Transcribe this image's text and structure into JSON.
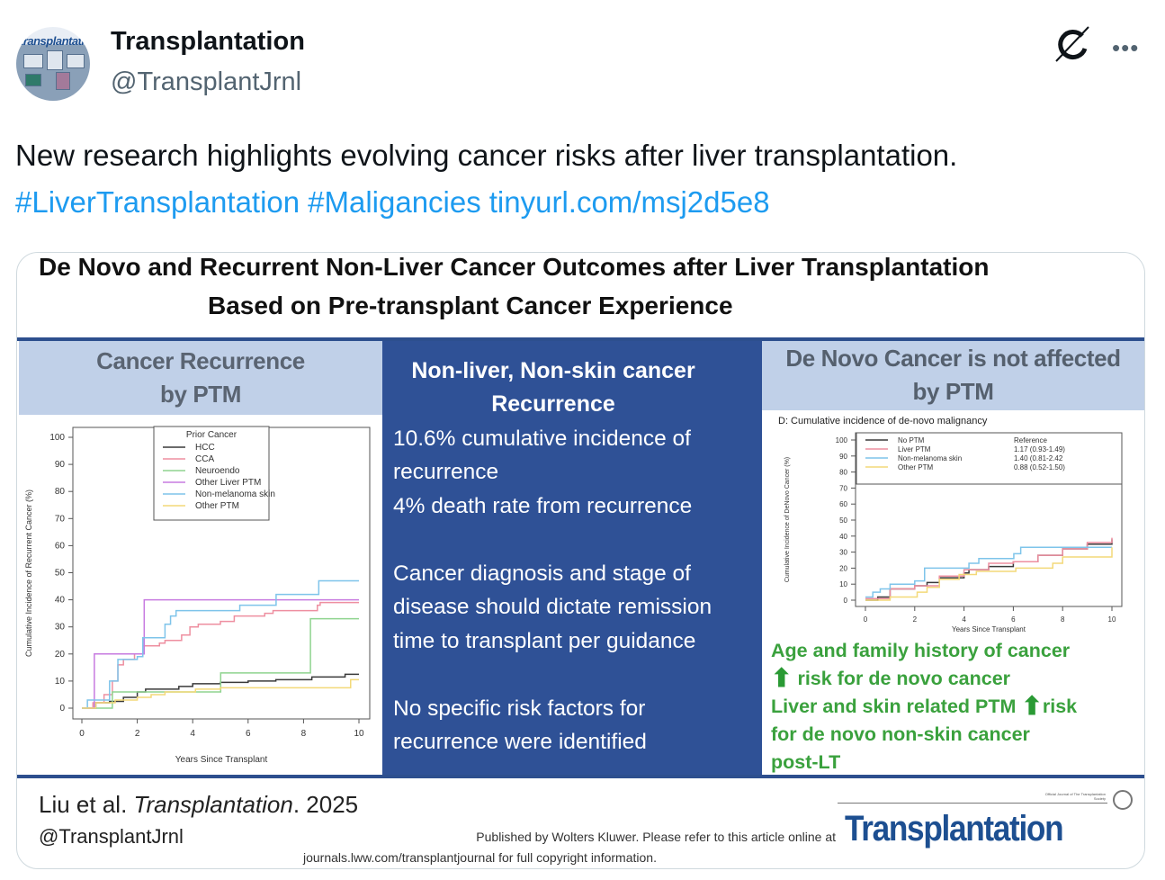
{
  "author": {
    "name": "Transplantation",
    "handle": "@TransplantJrnl",
    "avatar_text": "transplantation"
  },
  "header_icons": [
    "grok-icon",
    "more-icon"
  ],
  "more_label": "•••",
  "tweet": {
    "text": "New research highlights evolving cancer risks after liver transplantation.",
    "hashtags": [
      "#LiverTransplantation",
      "#Maligancies"
    ],
    "link": "tinyurl.com/msj2d5e8"
  },
  "infographic": {
    "title_line1": "De Novo and Recurrent Non-Liver Cancer Outcomes after Liver Transplantation",
    "title_line2": "Based on Pre-transplant Cancer Experience",
    "left_header": [
      "Cancer Recurrence",
      "by PTM"
    ],
    "middle": {
      "heading": [
        "Non-liver, Non-skin cancer",
        "Recurrence"
      ],
      "lines": [
        "10.6% cumulative incidence of",
        "recurrence",
        "4% death rate from recurrence",
        "Cancer diagnosis and stage of",
        "disease should dictate remission",
        "time to transplant per guidance",
        "No specific risk factors for",
        "recurrence were identified"
      ]
    },
    "right_header": [
      "De Novo Cancer is not affected",
      "by PTM"
    ],
    "right_findings": {
      "l1": "Age and family history of cancer",
      "l2": "risk for de novo cancer",
      "l3": "Liver and skin related PTM",
      "l3b": "risk",
      "l4": "for de novo non-skin cancer",
      "l5": "post-LT",
      "arrow_icon": "up-arrow-icon",
      "color": "#3aa13d"
    },
    "footer": {
      "citation_authors": "Liu et al.",
      "citation_journal": "Transplantation",
      "citation_year": ". 2025",
      "handle": "@TransplantJrnl",
      "publisher_line1": "Published by Wolters Kluwer. Please refer to this article online at",
      "publisher_line2": "journals.lww.com/transplantjournal for full copyright information.",
      "logo": "Transplantation",
      "logo_tag": "Official Journal of The Transplantation Society"
    },
    "colors": {
      "rule": "#2d4f8e",
      "header_bg": "#c0d0e8",
      "middle_bg": "#2f5196",
      "logo": "#1d4f91"
    }
  },
  "chart_data": [
    {
      "type": "line",
      "title": "",
      "xlabel": "Years Since Transplant",
      "ylabel": "Cumulative Incidence of Recurrent Cancer (%)",
      "xlim": [
        0,
        10
      ],
      "ylim": [
        0,
        100
      ],
      "xticks": [
        0,
        2,
        4,
        6,
        8,
        10
      ],
      "yticks": [
        0,
        10,
        20,
        30,
        40,
        50,
        60,
        70,
        80,
        90,
        100
      ],
      "legend_title": "Prior Cancer",
      "legend_position": "top-center",
      "grid": false,
      "series": [
        {
          "name": "HCC",
          "color": "#3a3a3a",
          "points": [
            [
              0,
              0
            ],
            [
              0.5,
              2
            ],
            [
              1,
              2.5
            ],
            [
              1.5,
              4
            ],
            [
              2,
              6
            ],
            [
              2.3,
              7
            ],
            [
              3,
              7
            ],
            [
              3.5,
              8
            ],
            [
              4,
              9
            ],
            [
              5,
              9.5
            ],
            [
              6,
              10
            ],
            [
              7,
              10.5
            ],
            [
              8,
              10.5
            ],
            [
              8.3,
              11.5
            ],
            [
              9.5,
              12.5
            ],
            [
              10,
              12.5
            ]
          ]
        },
        {
          "name": "CCA",
          "color": "#ee8fa0",
          "points": [
            [
              0,
              0
            ],
            [
              0.4,
              2
            ],
            [
              0.8,
              5
            ],
            [
              1.1,
              10
            ],
            [
              1.3,
              16
            ],
            [
              1.5,
              18
            ],
            [
              1.9,
              20
            ],
            [
              2.2,
              23
            ],
            [
              2.8,
              24
            ],
            [
              3,
              25
            ],
            [
              3.6,
              27
            ],
            [
              3.9,
              30
            ],
            [
              4.2,
              31
            ],
            [
              5,
              32
            ],
            [
              5.5,
              34
            ],
            [
              6.6,
              35
            ],
            [
              6.9,
              36
            ],
            [
              8.5,
              38
            ],
            [
              8.6,
              39
            ],
            [
              10,
              39
            ]
          ]
        },
        {
          "name": "Neuroendo",
          "color": "#8fd48f",
          "points": [
            [
              0,
              0
            ],
            [
              1.1,
              6
            ],
            [
              5,
              6
            ],
            [
              5.01,
              13
            ],
            [
              8.2,
              13
            ],
            [
              8.25,
              33
            ],
            [
              10,
              33
            ]
          ]
        },
        {
          "name": "Other Liver PTM",
          "color": "#c77be0",
          "points": [
            [
              0,
              0
            ],
            [
              0.45,
              20
            ],
            [
              2.2,
              20
            ],
            [
              2.25,
              40
            ],
            [
              10,
              40
            ]
          ]
        },
        {
          "name": "Non-melanoma skin",
          "color": "#7ec4ea",
          "points": [
            [
              0,
              0
            ],
            [
              0.2,
              3
            ],
            [
              0.9,
              3
            ],
            [
              1,
              10
            ],
            [
              1.3,
              18
            ],
            [
              2,
              19
            ],
            [
              2.2,
              26
            ],
            [
              2.8,
              26
            ],
            [
              3,
              31
            ],
            [
              3.2,
              34
            ],
            [
              3.4,
              36
            ],
            [
              5.6,
              36
            ],
            [
              5.7,
              38
            ],
            [
              7,
              38
            ],
            [
              7.01,
              42
            ],
            [
              8.5,
              42
            ],
            [
              8.55,
              47
            ],
            [
              10,
              47
            ]
          ]
        },
        {
          "name": "Other PTM",
          "color": "#f3d979",
          "points": [
            [
              0,
              0
            ],
            [
              0.5,
              2
            ],
            [
              1.2,
              3
            ],
            [
              2,
              4
            ],
            [
              2.5,
              5
            ],
            [
              3,
              6
            ],
            [
              4.1,
              7
            ],
            [
              5,
              7.5
            ],
            [
              9.6,
              7.5
            ],
            [
              9.7,
              10.5
            ],
            [
              10,
              10.5
            ]
          ]
        }
      ]
    },
    {
      "type": "line",
      "title": "D: Cumulative incidence of de-novo malignancy",
      "xlabel": "Years Since Transplant",
      "ylabel": "Cumulative Incidence of DeNovo Cancer (%)",
      "xlim": [
        0,
        10
      ],
      "ylim": [
        0,
        100
      ],
      "xticks": [
        0,
        2,
        4,
        6,
        8,
        10
      ],
      "yticks": [
        0,
        10,
        20,
        30,
        40,
        50,
        60,
        70,
        80,
        90,
        100
      ],
      "legend_position": "top",
      "grid": false,
      "series": [
        {
          "name": "No PTM",
          "hr": "Reference",
          "color": "#3a3a3a",
          "points": [
            [
              0,
              0
            ],
            [
              0.5,
              2
            ],
            [
              1,
              7
            ],
            [
              2,
              9
            ],
            [
              2.5,
              11
            ],
            [
              3,
              14
            ],
            [
              4,
              17
            ],
            [
              4.2,
              19
            ],
            [
              5,
              21
            ],
            [
              6,
              24
            ],
            [
              7,
              28
            ],
            [
              8,
              32
            ],
            [
              9,
              35
            ],
            [
              10,
              38
            ]
          ]
        },
        {
          "name": "Liver PTM",
          "hr": "1.17 (0.93-1.49)",
          "color": "#ee8fa0",
          "points": [
            [
              0,
              1
            ],
            [
              1,
              7
            ],
            [
              2,
              9
            ],
            [
              3,
              15
            ],
            [
              4,
              19
            ],
            [
              5,
              23
            ],
            [
              6,
              24
            ],
            [
              7,
              28
            ],
            [
              8,
              32
            ],
            [
              9,
              36
            ],
            [
              10,
              39
            ]
          ]
        },
        {
          "name": "Non-melanoma skin",
          "hr": "1.40 (0.81-2.42",
          "color": "#7ec4ea",
          "points": [
            [
              0,
              2
            ],
            [
              0.3,
              5
            ],
            [
              0.6,
              7
            ],
            [
              1,
              10
            ],
            [
              2,
              12
            ],
            [
              2.4,
              20
            ],
            [
              4,
              20
            ],
            [
              4.2,
              23
            ],
            [
              4.6,
              26
            ],
            [
              6,
              26
            ],
            [
              6.02,
              29
            ],
            [
              6.3,
              33
            ],
            [
              10,
              33
            ]
          ]
        },
        {
          "name": "Other PTM",
          "hr": "0.88 (0.52-1.50)",
          "color": "#f3d979",
          "points": [
            [
              0,
              0
            ],
            [
              1,
              2
            ],
            [
              2,
              2
            ],
            [
              2.1,
              5
            ],
            [
              2.5,
              8
            ],
            [
              3,
              13
            ],
            [
              3.8,
              16
            ],
            [
              4.5,
              18
            ],
            [
              6,
              18
            ],
            [
              6.1,
              20
            ],
            [
              7.5,
              20
            ],
            [
              7.6,
              23
            ],
            [
              8,
              27
            ],
            [
              10,
              27
            ],
            [
              10,
              33
            ]
          ]
        }
      ]
    }
  ]
}
